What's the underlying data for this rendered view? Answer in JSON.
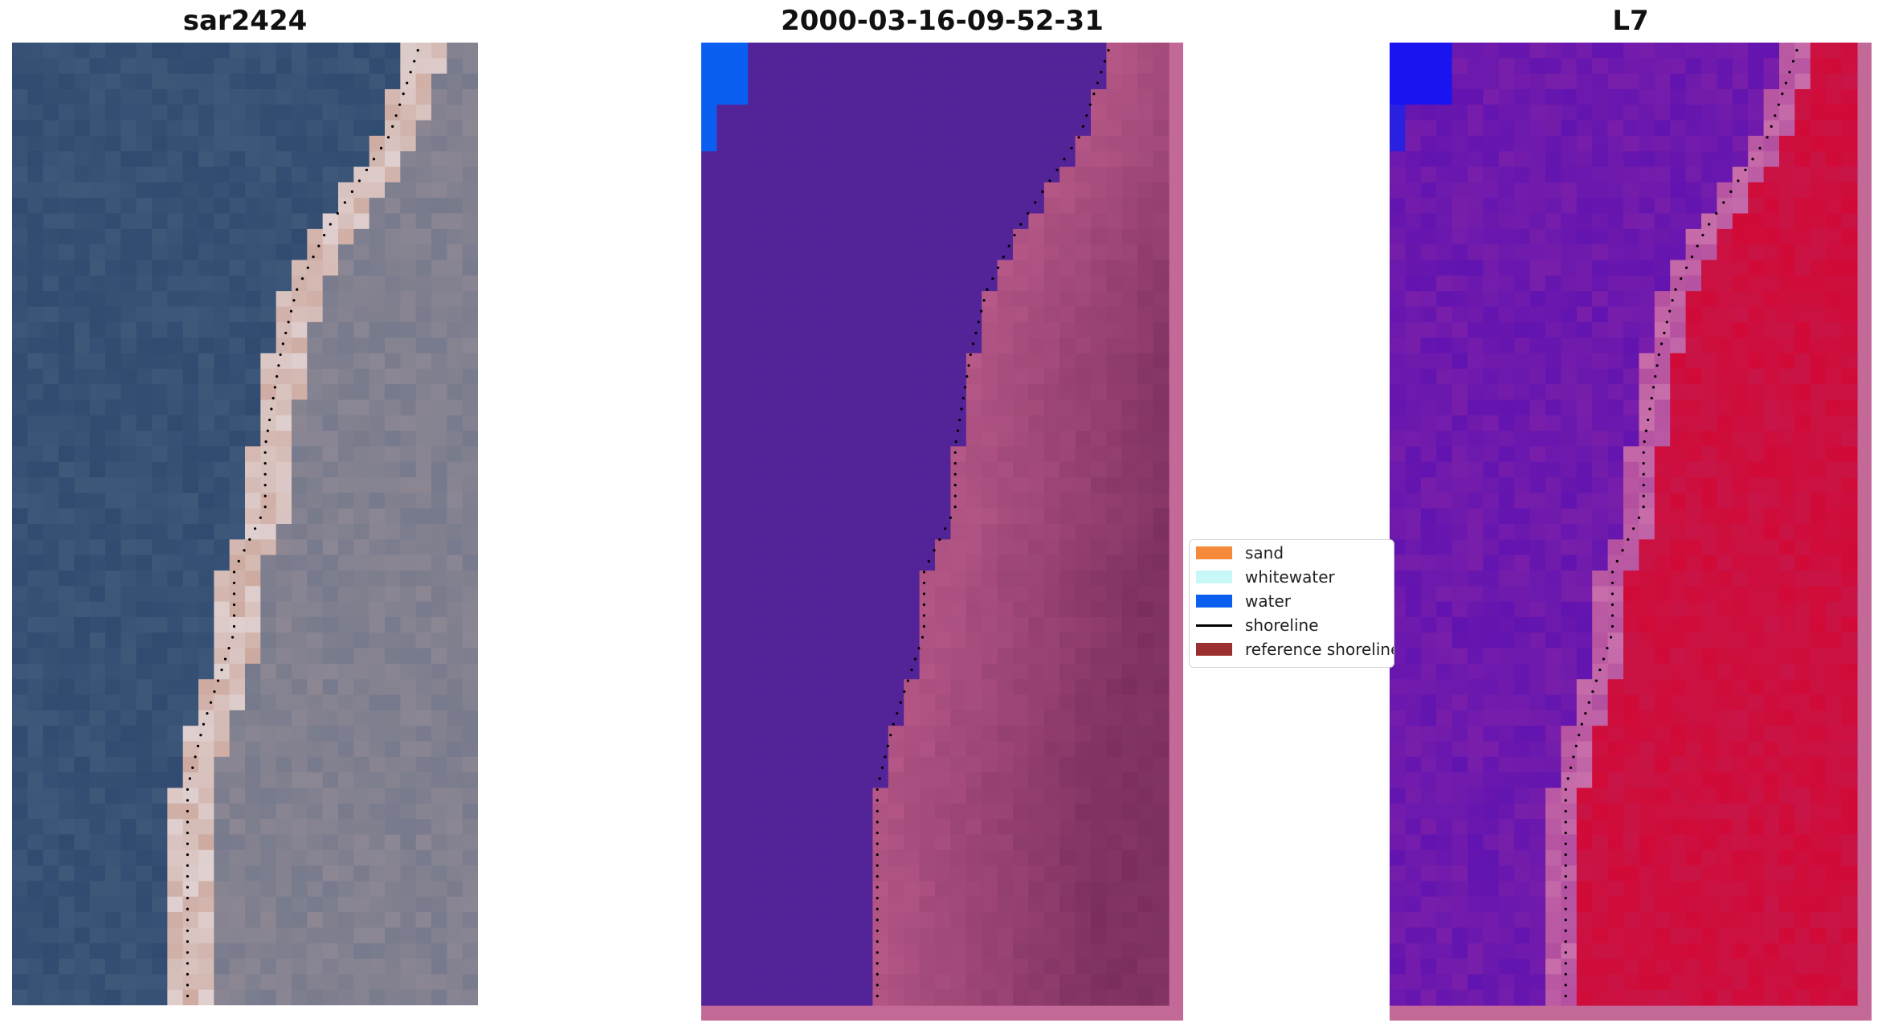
{
  "panels": [
    {
      "title": "sar2424"
    },
    {
      "title": "2000-03-16-09-52-31"
    },
    {
      "title": "L7"
    }
  ],
  "legend": {
    "items": [
      {
        "label": "sand",
        "color": "#f58b3a",
        "kind": "patch"
      },
      {
        "label": "whitewater",
        "color": "#c8f7f7",
        "kind": "patch"
      },
      {
        "label": "water",
        "color": "#0a5ef0",
        "kind": "patch"
      },
      {
        "label": "shoreline",
        "color": "#000000",
        "kind": "line"
      },
      {
        "label": "reference shoreline",
        "color": "#9b2f2f",
        "kind": "patch"
      }
    ]
  },
  "colors": {
    "classified_water": "#532398",
    "classified_land": "#b45888",
    "classified_deep_water": "#0a5ef0",
    "index_low": "#6a14b4",
    "index_high": "#cc0a3c"
  }
}
